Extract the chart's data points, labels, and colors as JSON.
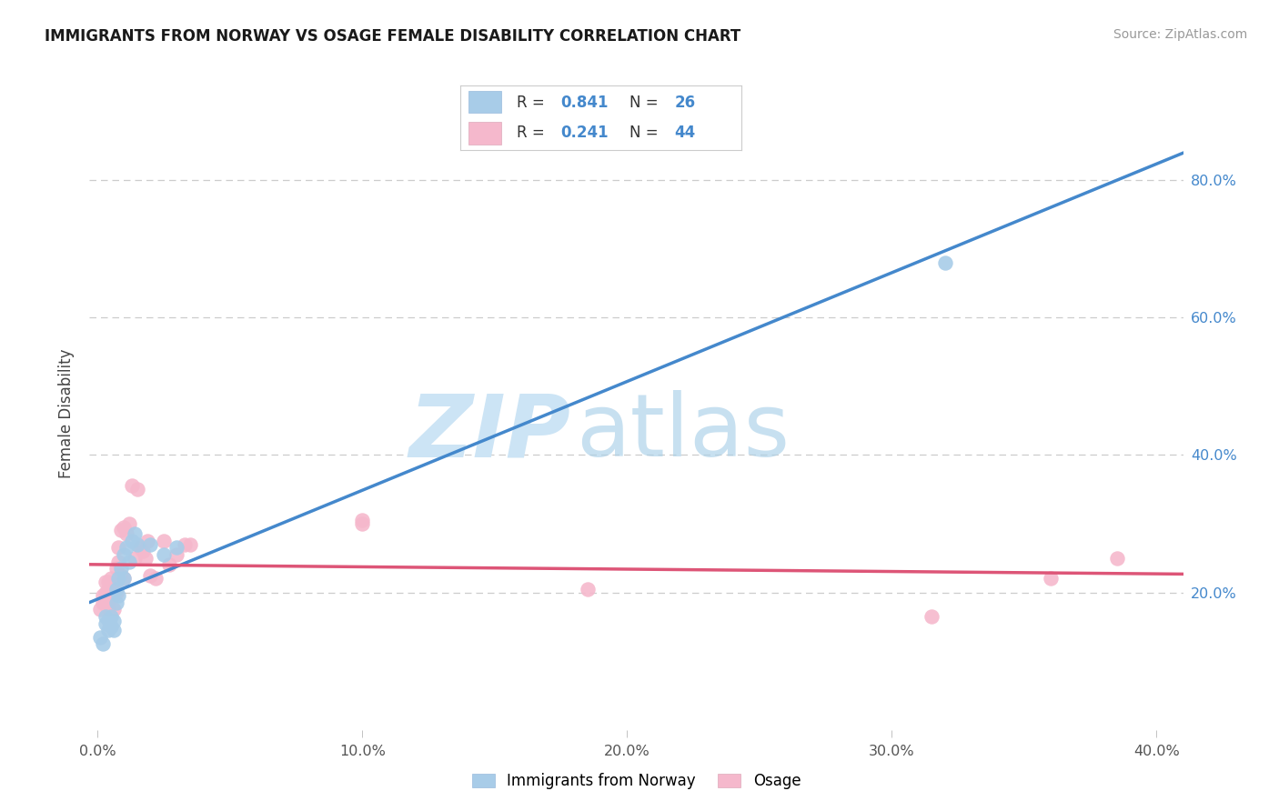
{
  "title": "IMMIGRANTS FROM NORWAY VS OSAGE FEMALE DISABILITY CORRELATION CHART",
  "source": "Source: ZipAtlas.com",
  "ylabel": "Female Disability",
  "xlim": [
    -0.003,
    0.41
  ],
  "ylim": [
    0.0,
    0.92
  ],
  "x_tick_positions": [
    0.0,
    0.1,
    0.2,
    0.3,
    0.4
  ],
  "x_tick_labels": [
    "0.0%",
    "10.0%",
    "20.0%",
    "30.0%",
    "40.0%"
  ],
  "y_ticks_right": [
    0.2,
    0.4,
    0.6,
    0.8
  ],
  "y_tick_labels_right": [
    "20.0%",
    "40.0%",
    "60.0%",
    "80.0%"
  ],
  "legend_label1": "Immigrants from Norway",
  "legend_label2": "Osage",
  "R1_text": "0.841",
  "N1_text": "26",
  "R2_text": "0.241",
  "N2_text": "44",
  "blue_scatter": "#a8cce8",
  "pink_scatter": "#f5b8cc",
  "line_blue": "#4488cc",
  "line_pink": "#dd5577",
  "watermark_zip_color": "#cce4f5",
  "watermark_atlas_color": "#aad0e8",
  "norway_x": [
    0.001,
    0.002,
    0.003,
    0.003,
    0.004,
    0.004,
    0.005,
    0.005,
    0.006,
    0.006,
    0.007,
    0.007,
    0.008,
    0.008,
    0.009,
    0.01,
    0.01,
    0.011,
    0.012,
    0.013,
    0.014,
    0.015,
    0.02,
    0.025,
    0.03,
    0.32
  ],
  "norway_y": [
    0.135,
    0.125,
    0.155,
    0.165,
    0.145,
    0.16,
    0.15,
    0.165,
    0.145,
    0.158,
    0.185,
    0.205,
    0.195,
    0.22,
    0.235,
    0.255,
    0.22,
    0.265,
    0.245,
    0.275,
    0.285,
    0.27,
    0.27,
    0.255,
    0.265,
    0.68
  ],
  "osage_x": [
    0.001,
    0.002,
    0.002,
    0.003,
    0.003,
    0.003,
    0.004,
    0.004,
    0.004,
    0.005,
    0.005,
    0.005,
    0.006,
    0.006,
    0.007,
    0.007,
    0.008,
    0.008,
    0.009,
    0.009,
    0.01,
    0.01,
    0.011,
    0.012,
    0.013,
    0.014,
    0.015,
    0.016,
    0.017,
    0.018,
    0.019,
    0.02,
    0.022,
    0.025,
    0.027,
    0.03,
    0.033,
    0.035,
    0.1,
    0.1,
    0.185,
    0.315,
    0.36,
    0.385
  ],
  "osage_y": [
    0.175,
    0.185,
    0.195,
    0.185,
    0.2,
    0.215,
    0.175,
    0.205,
    0.215,
    0.19,
    0.21,
    0.22,
    0.175,
    0.21,
    0.2,
    0.235,
    0.245,
    0.265,
    0.225,
    0.29,
    0.22,
    0.295,
    0.285,
    0.3,
    0.355,
    0.25,
    0.35,
    0.265,
    0.26,
    0.25,
    0.275,
    0.225,
    0.22,
    0.275,
    0.24,
    0.255,
    0.27,
    0.27,
    0.3,
    0.305,
    0.205,
    0.165,
    0.22,
    0.25
  ]
}
